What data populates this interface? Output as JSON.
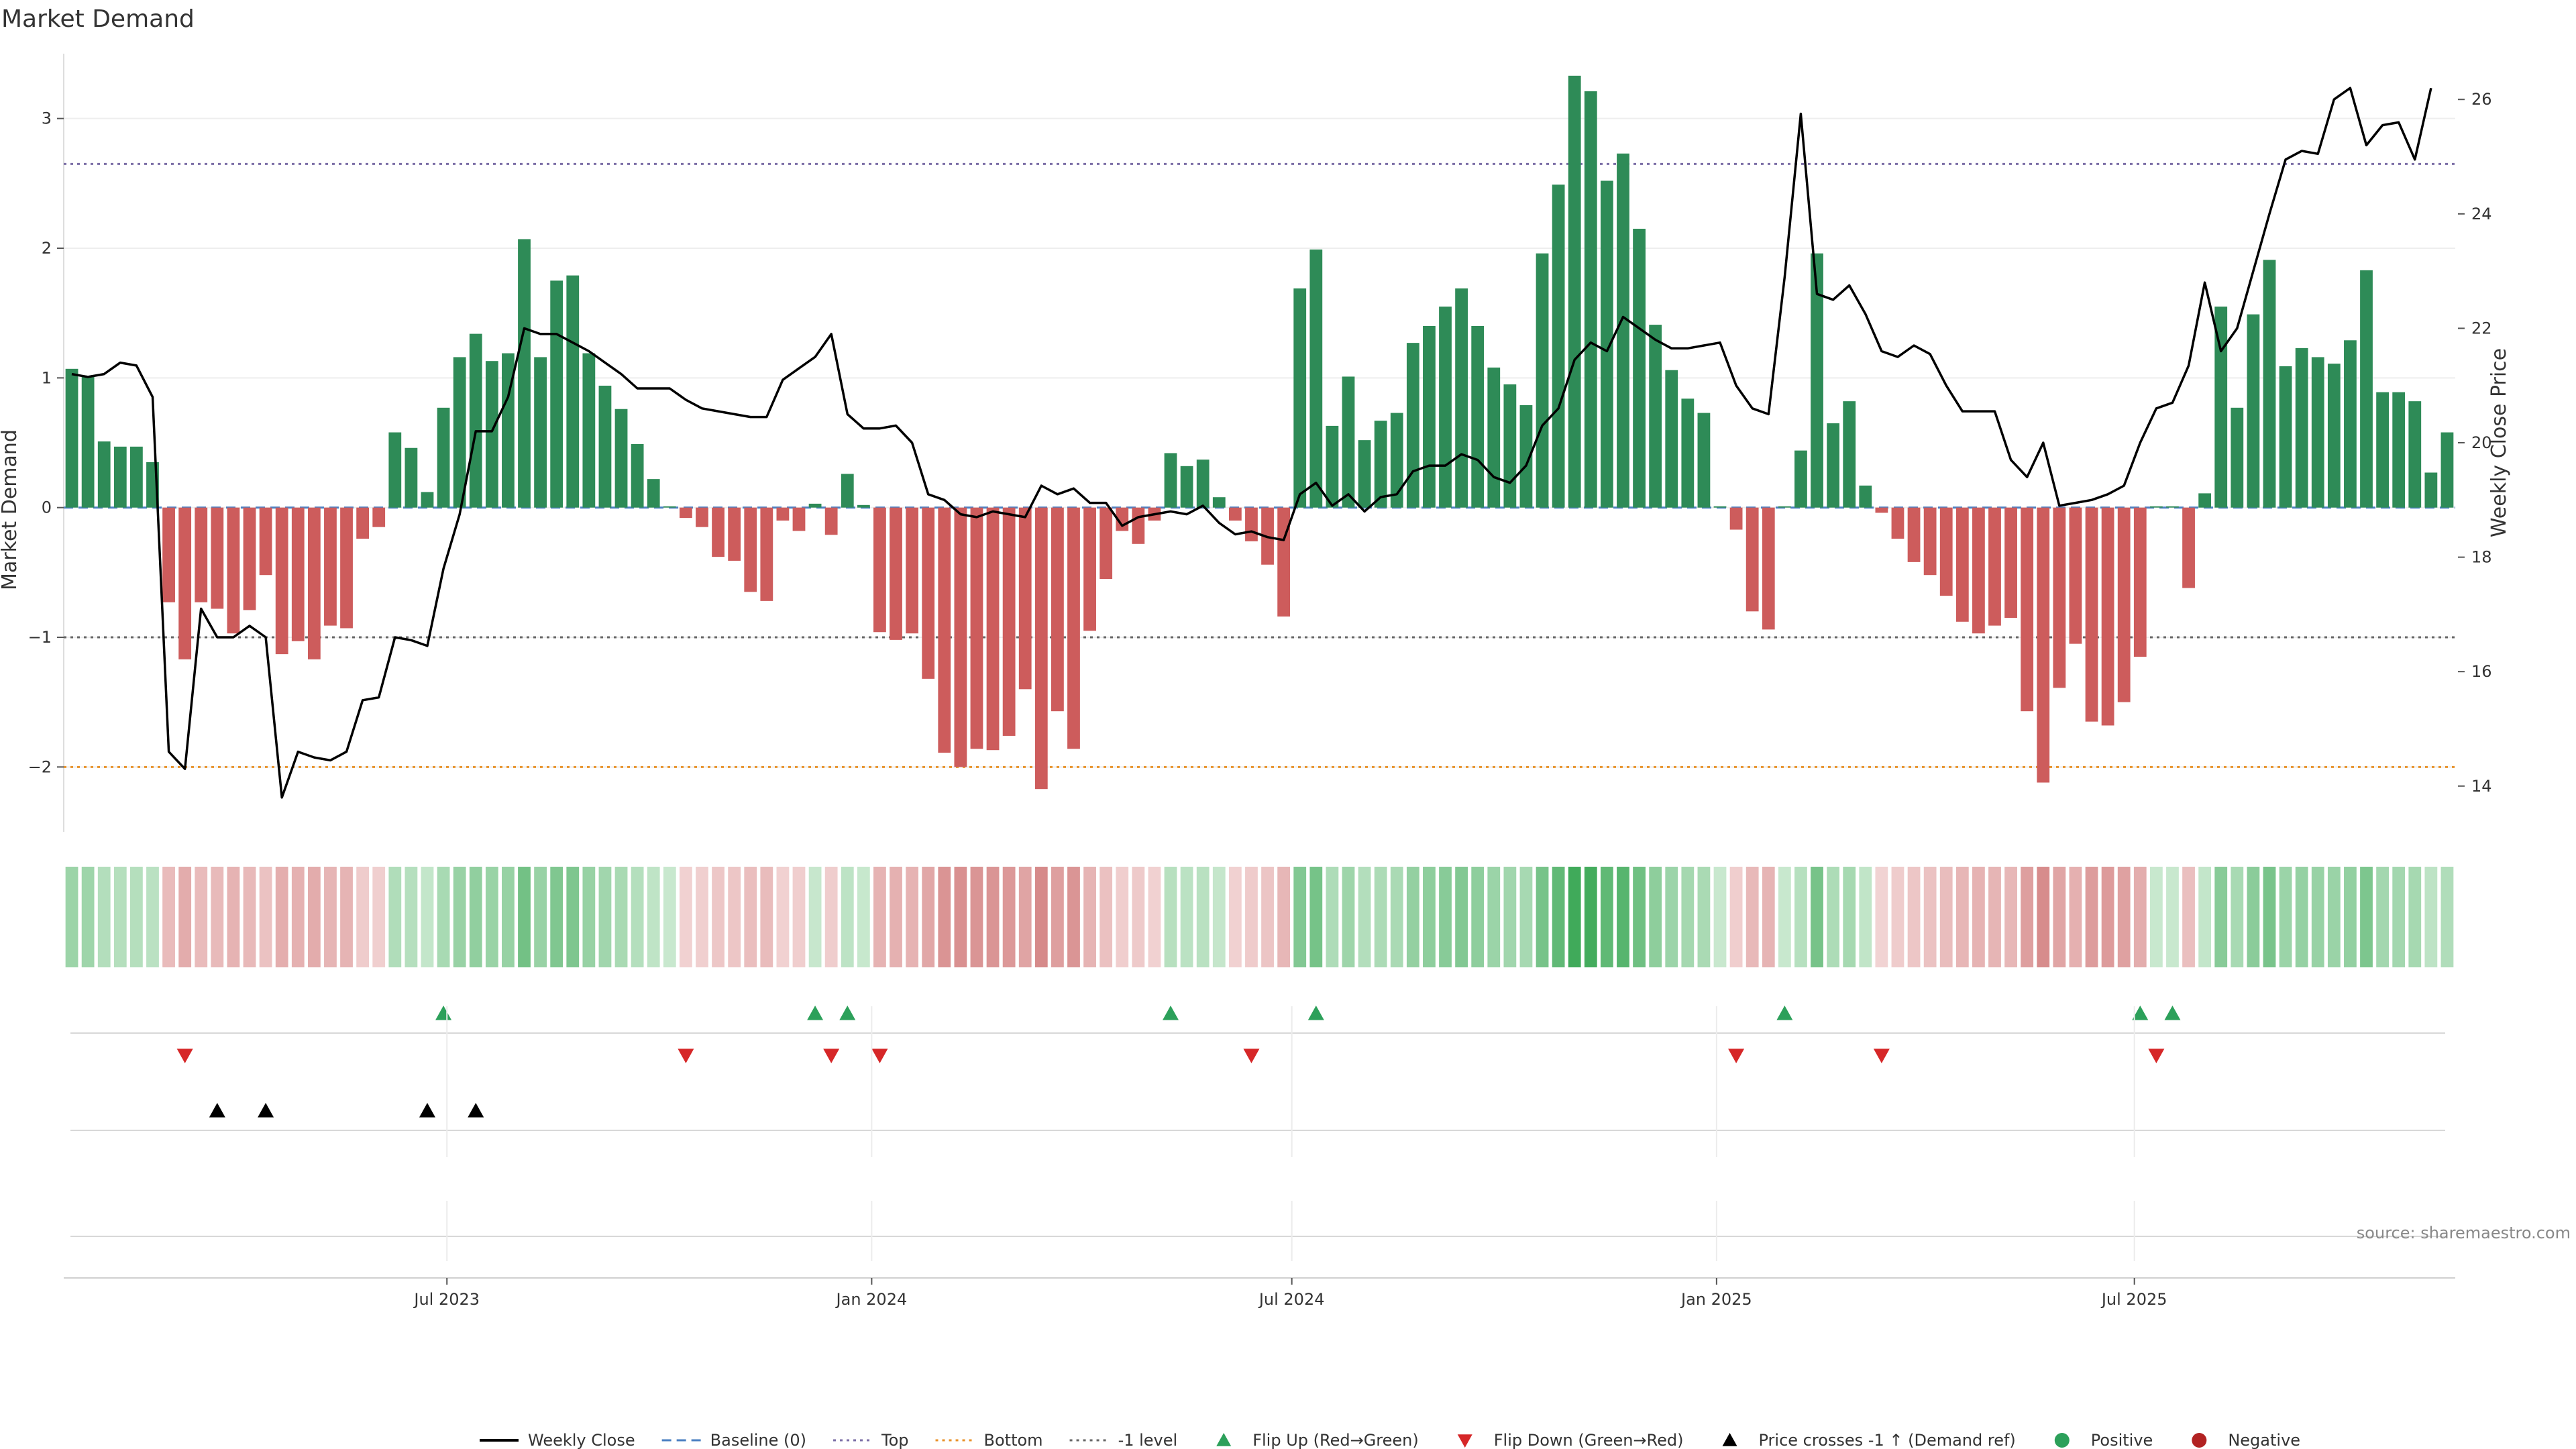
{
  "chart_data": {
    "type": "bar",
    "title": "Market Demand",
    "ylabel": "Market Demand",
    "y2label": "Weekly Close Price",
    "ylim": [
      -2.5,
      3.5
    ],
    "y2lim": [
      13.2,
      26.8
    ],
    "yticks": [
      -2,
      -1,
      0,
      1,
      2,
      3
    ],
    "yticklabels": [
      "−2",
      "−1",
      "0",
      "1",
      "2",
      "3"
    ],
    "y2ticks": [
      14,
      16,
      18,
      20,
      22,
      24,
      26
    ],
    "x_start": "2023-01-16",
    "x_end": "2025-10-20",
    "xticks": [
      {
        "date": "2023-07-01",
        "label": "Jul 2023"
      },
      {
        "date": "2024-01-01",
        "label": "Jan 2024"
      },
      {
        "date": "2024-07-01",
        "label": "Jul 2024"
      },
      {
        "date": "2025-01-01",
        "label": "Jan 2025"
      },
      {
        "date": "2025-07-01",
        "label": "Jul 2025"
      }
    ],
    "reference_lines": [
      {
        "name": "Top",
        "value": 2.65,
        "color": "#7b6ea6",
        "style": "dotted"
      },
      {
        "name": "-1 level",
        "value": -1,
        "color": "#666666",
        "style": "dotted"
      },
      {
        "name": "Bottom",
        "value": -2,
        "color": "#e8922a",
        "style": "dotted"
      },
      {
        "name": "Baseline (0)",
        "value": 0,
        "color": "#4a7fc1",
        "style": "dashed"
      }
    ],
    "colors": {
      "positive": "#2e8b57",
      "negative": "#cd5c5c",
      "price": "#000000",
      "flip_up": "#2ca05a",
      "flip_down": "#d62728",
      "cross": "#000000"
    },
    "demand": [
      1.07,
      1.01,
      0.51,
      0.47,
      0.47,
      0.35,
      -0.73,
      -1.17,
      -0.73,
      -0.78,
      -0.97,
      -0.79,
      -0.52,
      -1.13,
      -1.03,
      -1.17,
      -0.91,
      -0.93,
      -0.24,
      -0.15,
      0.58,
      0.46,
      0.12,
      0.77,
      1.16,
      1.34,
      1.13,
      1.19,
      2.07,
      1.16,
      1.75,
      1.79,
      1.19,
      0.94,
      0.76,
      0.49,
      0.22,
      0.01,
      -0.08,
      -0.15,
      -0.38,
      -0.41,
      -0.65,
      -0.72,
      -0.1,
      -0.18,
      0.03,
      -0.21,
      0.26,
      0.02,
      -0.96,
      -1.02,
      -0.97,
      -1.32,
      -1.89,
      -2.0,
      -1.86,
      -1.87,
      -1.76,
      -1.4,
      -2.17,
      -1.57,
      -1.86,
      -0.95,
      -0.55,
      -0.18,
      -0.28,
      -0.1,
      0.42,
      0.32,
      0.37,
      0.08,
      -0.1,
      -0.26,
      -0.44,
      -0.84,
      1.69,
      1.99,
      0.63,
      1.01,
      0.52,
      0.67,
      0.73,
      1.27,
      1.4,
      1.55,
      1.69,
      1.4,
      1.08,
      0.95,
      0.79,
      1.96,
      2.49,
      3.33,
      3.21,
      2.52,
      2.73,
      2.15,
      1.41,
      1.06,
      0.84,
      0.73,
      0.01,
      -0.17,
      -0.8,
      -0.94,
      0.01,
      0.44,
      1.96,
      0.65,
      0.82,
      0.17,
      -0.04,
      -0.24,
      -0.42,
      -0.52,
      -0.68,
      -0.88,
      -0.97,
      -0.91,
      -0.85,
      -1.57,
      -2.12,
      -1.39,
      -1.05,
      -1.65,
      -1.68,
      -1.5,
      -1.15,
      0.01,
      0.01,
      -0.62,
      0.11,
      1.55,
      0.77,
      1.49,
      1.91,
      1.09,
      1.23,
      1.16,
      1.11,
      1.29,
      1.83,
      0.89,
      0.89,
      0.82,
      0.27,
      0.58
    ],
    "price": [
      21.2,
      21.15,
      21.2,
      21.4,
      21.35,
      20.8,
      14.6,
      14.3,
      17.1,
      16.6,
      16.6,
      16.8,
      16.6,
      13.8,
      14.6,
      14.5,
      14.45,
      14.6,
      15.5,
      15.55,
      16.6,
      16.55,
      16.45,
      17.8,
      18.75,
      20.2,
      20.2,
      20.8,
      22.0,
      21.9,
      21.9,
      21.75,
      21.6,
      21.4,
      21.2,
      20.95,
      20.95,
      20.95,
      20.75,
      20.6,
      20.55,
      20.5,
      20.45,
      20.45,
      21.1,
      21.3,
      21.5,
      21.9,
      20.5,
      20.25,
      20.25,
      20.3,
      20.0,
      19.1,
      19.0,
      18.75,
      18.7,
      18.8,
      18.75,
      18.7,
      19.25,
      19.1,
      19.2,
      18.95,
      18.95,
      18.55,
      18.7,
      18.75,
      18.8,
      18.75,
      18.9,
      18.6,
      18.4,
      18.45,
      18.35,
      18.3,
      19.1,
      19.3,
      18.9,
      19.1,
      18.8,
      19.05,
      19.1,
      19.5,
      19.6,
      19.6,
      19.8,
      19.7,
      19.4,
      19.3,
      19.6,
      20.3,
      20.6,
      21.45,
      21.75,
      21.6,
      22.2,
      22.0,
      21.8,
      21.65,
      21.65,
      21.7,
      21.75,
      21.0,
      20.6,
      20.5,
      22.9,
      25.75,
      22.6,
      22.5,
      22.75,
      22.25,
      21.6,
      21.5,
      21.7,
      21.55,
      21.0,
      20.55,
      20.55,
      20.55,
      19.7,
      19.4,
      20.0,
      18.9,
      18.95,
      19.0,
      19.1,
      19.25,
      20.0,
      20.6,
      20.7,
      21.35,
      22.8,
      21.6,
      22.0,
      23.0,
      24.0,
      24.95,
      25.1,
      25.05,
      26.0,
      26.2,
      25.2,
      25.55,
      25.6,
      24.95,
      26.2
    ],
    "flip_up_dates": [
      "2023-06-26",
      "2023-12-04",
      "2023-12-18",
      "2024-05-06",
      "2024-07-08",
      "2025-01-27",
      "2025-06-30",
      "2025-07-14"
    ],
    "flip_down_dates": [
      "2023-03-06",
      "2023-10-09",
      "2023-12-11",
      "2024-01-01",
      "2024-06-10",
      "2025-01-06",
      "2025-03-10",
      "2025-07-07"
    ],
    "price_cross_dates": [
      "2023-03-20",
      "2023-04-10",
      "2023-06-19",
      "2023-07-10"
    ],
    "legend": [
      {
        "label": "Weekly Close",
        "kind": "line",
        "color": "#000000"
      },
      {
        "label": "Baseline (0)",
        "kind": "dashed",
        "color": "#4a7fc1"
      },
      {
        "label": "Top",
        "kind": "dotted",
        "color": "#7b6ea6"
      },
      {
        "label": "Bottom",
        "kind": "dotted",
        "color": "#e8922a"
      },
      {
        "label": "-1 level",
        "kind": "dotted",
        "color": "#666666"
      },
      {
        "label": "Flip Up (Red→Green)",
        "kind": "tri-up",
        "color": "#2ca05a"
      },
      {
        "label": "Flip Down (Green→Red)",
        "kind": "tri-down",
        "color": "#d62728"
      },
      {
        "label": "Price crosses -1 ↑ (Demand ref)",
        "kind": "tri-up",
        "color": "#000000"
      },
      {
        "label": "Positive",
        "kind": "dot",
        "color": "#2ca05a"
      },
      {
        "label": "Negative",
        "kind": "dot",
        "color": "#b22222"
      }
    ],
    "source": "source: sharemaestro.com"
  }
}
